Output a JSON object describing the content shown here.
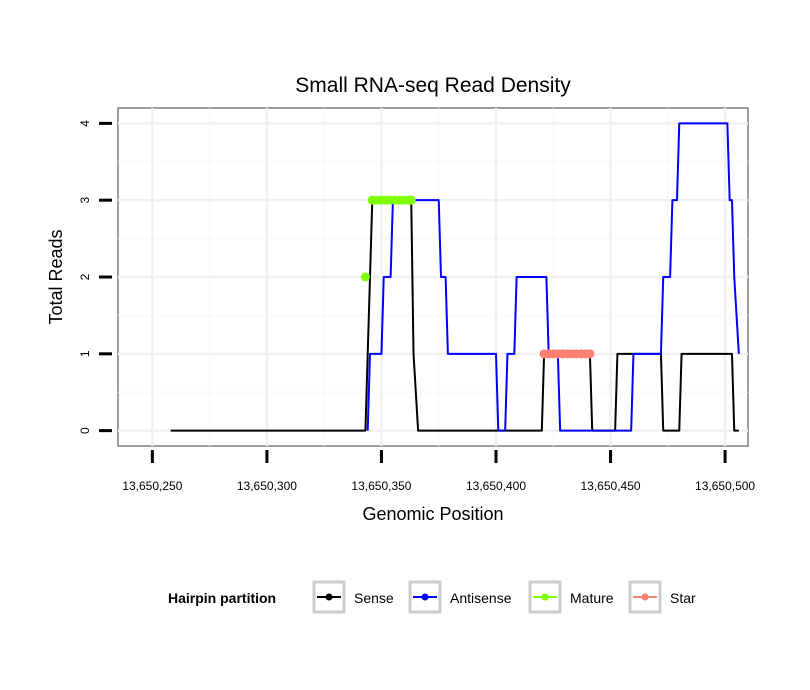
{
  "chart_data": {
    "type": "line",
    "title": "Small RNA-seq Read Density",
    "xlabel": "Genomic Position",
    "ylabel": "Total Reads",
    "xlim": [
      13650235,
      13650510
    ],
    "ylim": [
      -0.2,
      4.2
    ],
    "x_ticks": [
      13650250,
      13650300,
      13650350,
      13650400,
      13650450,
      13650500
    ],
    "x_tick_labels": [
      "13,650,250",
      "13,650,300",
      "13,650,350",
      "13,650,400",
      "13,650,450",
      "13,650,500"
    ],
    "y_ticks": [
      0,
      1,
      2,
      3,
      4
    ],
    "y_tick_labels": [
      "0",
      "1",
      "2",
      "3",
      "4"
    ],
    "grid": true,
    "legend": {
      "title": "Hairpin partition",
      "position": "bottom",
      "entries": [
        {
          "name": "Sense",
          "color": "#000000"
        },
        {
          "name": "Antisense",
          "color": "#0000ff"
        },
        {
          "name": "Mature",
          "color": "#7fff00"
        },
        {
          "name": "Star",
          "color": "#fa8072"
        }
      ]
    },
    "series": [
      {
        "name": "Sense",
        "color": "#000000",
        "style": "line",
        "x": [
          13650258,
          13650343,
          13650346,
          13650363,
          13650364,
          13650366,
          13650420,
          13650421,
          13650441,
          13650442,
          13650452,
          13650453,
          13650472,
          13650473,
          13650480,
          13650481,
          13650503,
          13650504,
          13650506
        ],
        "y": [
          0,
          0,
          3,
          3,
          1,
          0,
          0,
          1,
          1,
          0,
          0,
          1,
          1,
          0,
          0,
          1,
          1,
          0,
          0
        ]
      },
      {
        "name": "Antisense",
        "color": "#0000ff",
        "style": "line",
        "x": [
          13650344,
          13650345,
          13650350,
          13650351,
          13650354,
          13650355,
          13650375,
          13650376,
          13650378,
          13650379,
          13650400,
          13650401,
          13650404,
          13650405,
          13650408,
          13650409,
          13650422,
          13650423,
          13650427,
          13650428,
          13650459,
          13650460,
          13650472,
          13650473,
          13650476,
          13650477,
          13650479,
          13650480,
          13650501,
          13650502,
          13650503,
          13650504,
          13650506
        ],
        "y": [
          0,
          1,
          1,
          2,
          2,
          3,
          3,
          2,
          2,
          1,
          1,
          0,
          0,
          1,
          1,
          2,
          2,
          1,
          1,
          0,
          0,
          1,
          1,
          2,
          2,
          3,
          3,
          4,
          4,
          3,
          3,
          2,
          1
        ]
      },
      {
        "name": "Mature",
        "color": "#7fff00",
        "style": "points",
        "x": [
          13650343,
          13650346,
          13650348,
          13650350,
          13650352,
          13650354,
          13650356,
          13650358,
          13650360,
          13650362,
          13650363
        ],
        "y": [
          2,
          3,
          3,
          3,
          3,
          3,
          3,
          3,
          3,
          3,
          3
        ]
      },
      {
        "name": "Star",
        "color": "#fa8072",
        "style": "points",
        "x": [
          13650421,
          13650423,
          13650425,
          13650427,
          13650429,
          13650431,
          13650433,
          13650435,
          13650437,
          13650439,
          13650441
        ],
        "y": [
          1,
          1,
          1,
          1,
          1,
          1,
          1,
          1,
          1,
          1,
          1
        ]
      }
    ]
  }
}
